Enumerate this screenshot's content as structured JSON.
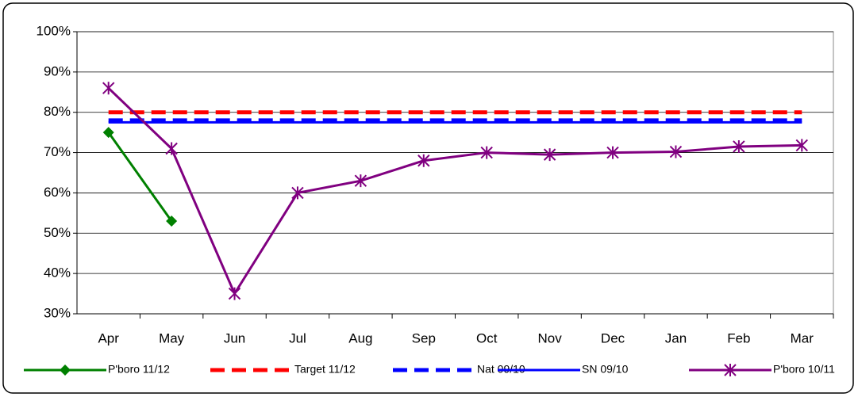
{
  "chart_data": {
    "type": "line",
    "categories": [
      "Apr",
      "May",
      "Jun",
      "Jul",
      "Aug",
      "Sep",
      "Oct",
      "Nov",
      "Dec",
      "Jan",
      "Feb",
      "Mar"
    ],
    "series": [
      {
        "name": "P'boro 11/12",
        "color": "#008000",
        "line_style": "solid",
        "marker": "diamond",
        "values": [
          75,
          53,
          null,
          null,
          null,
          null,
          null,
          null,
          null,
          null,
          null,
          null
        ]
      },
      {
        "name": "Target 11/12",
        "color": "#ff0000",
        "line_style": "dashed",
        "marker": "none",
        "values": [
          80,
          80,
          80,
          80,
          80,
          80,
          80,
          80,
          80,
          80,
          80,
          80
        ]
      },
      {
        "name": "Nat 09/10",
        "color": "#0000ff",
        "line_style": "dashed",
        "marker": "none",
        "values": [
          78,
          78,
          78,
          78,
          78,
          78,
          78,
          78,
          78,
          78,
          78,
          78
        ]
      },
      {
        "name": "SN 09/10",
        "color": "#0000ff",
        "line_style": "solid",
        "marker": "none",
        "values": [
          77.5,
          77.5,
          77.5,
          77.5,
          77.5,
          77.5,
          77.5,
          77.5,
          77.5,
          77.5,
          77.5,
          77.5
        ]
      },
      {
        "name": "P'boro 10/11",
        "color": "#800080",
        "line_style": "solid",
        "marker": "star",
        "values": [
          86,
          71,
          35,
          60,
          63,
          68,
          70,
          69.5,
          70,
          70.2,
          71.5,
          71.8
        ]
      }
    ],
    "ylim": [
      30,
      100
    ],
    "yticks": [
      {
        "value": 30,
        "label": "30%"
      },
      {
        "value": 40,
        "label": "40%"
      },
      {
        "value": 50,
        "label": "50%"
      },
      {
        "value": 60,
        "label": "60%"
      },
      {
        "value": 70,
        "label": "70%"
      },
      {
        "value": 80,
        "label": "80%"
      },
      {
        "value": 90,
        "label": "90%"
      },
      {
        "value": 100,
        "label": "100%"
      }
    ],
    "grid": true,
    "legend": "bottom"
  }
}
